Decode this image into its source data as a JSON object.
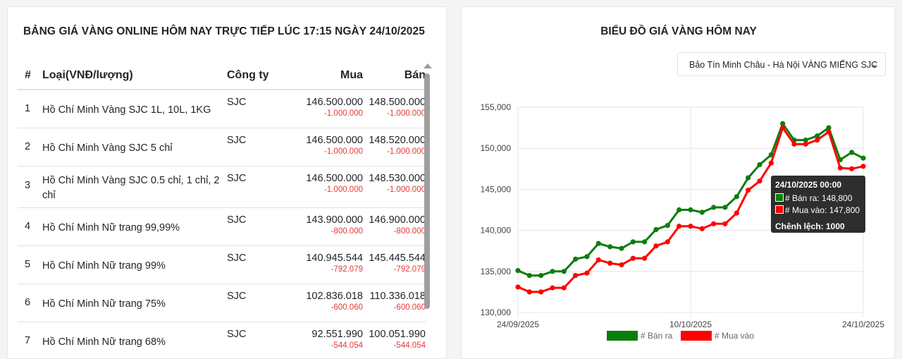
{
  "left": {
    "title": "BẢNG GIÁ VÀNG ONLINE HÔM NAY TRỰC TIẾP LÚC 17:15 NGÀY 24/10/2025",
    "columns": [
      "#",
      "Loại(VNĐ/lượng)",
      "Công ty",
      "Mua",
      "Bán"
    ],
    "rows": [
      {
        "idx": "1",
        "name": "Hồ Chí Minh Vàng SJC 1L, 10L, 1KG",
        "company": "SJC",
        "buy": "146.500.000",
        "buy_diff": "-1.000.000",
        "sell": "148.500.000",
        "sell_diff": "-1.000.000"
      },
      {
        "idx": "2",
        "name": "Hồ Chí Minh Vàng SJC 5 chỉ",
        "company": "SJC",
        "buy": "146.500.000",
        "buy_diff": "-1.000.000",
        "sell": "148.520.000",
        "sell_diff": "-1.000.000"
      },
      {
        "idx": "3",
        "name": "Hồ Chí Minh Vàng SJC 0.5 chỉ, 1 chỉ, 2 chỉ",
        "company": "SJC",
        "buy": "146.500.000",
        "buy_diff": "-1.000.000",
        "sell": "148.530.000",
        "sell_diff": "-1.000.000"
      },
      {
        "idx": "4",
        "name": "Hồ Chí Minh Nữ trang 99,99%",
        "company": "SJC",
        "buy": "143.900.000",
        "buy_diff": "-800.000",
        "sell": "146.900.000",
        "sell_diff": "-800.000"
      },
      {
        "idx": "5",
        "name": "Hồ Chí Minh Nữ trang 99%",
        "company": "SJC",
        "buy": "140.945.544",
        "buy_diff": "-792.079",
        "sell": "145.445.544",
        "sell_diff": "-792.079"
      },
      {
        "idx": "6",
        "name": "Hồ Chí Minh Nữ trang 75%",
        "company": "SJC",
        "buy": "102.836.018",
        "buy_diff": "-600.060",
        "sell": "110.336.018",
        "sell_diff": "-600.060"
      },
      {
        "idx": "7",
        "name": "Hồ Chí Minh Nữ trang 68%",
        "company": "SJC",
        "buy": "92.551.990",
        "buy_diff": "-544.054",
        "sell": "100.051.990",
        "sell_diff": "-544.054"
      }
    ]
  },
  "right": {
    "title": "BIỂU ĐỒ GIÁ VÀNG HÔM NAY",
    "select_value": "Bảo Tín Minh Châu - Hà Nội VÀNG MIẾNG SJC",
    "tooltip": {
      "title": "24/10/2025 00:00",
      "sell_line": "# Bán ra: 148,800",
      "buy_line": "# Mua vào: 147,800",
      "footer": "Chênh lệch: 1000"
    }
  },
  "chart_data": {
    "type": "line",
    "title": "BIỂU ĐỒ GIÁ VÀNG HÔM NAY",
    "x_tick_labels": [
      "24/09/2025",
      "10/10/2025",
      "24/10/2025"
    ],
    "y_ticks": [
      130000,
      135000,
      140000,
      145000,
      150000,
      155000
    ],
    "y_tick_labels": [
      "130,000",
      "135,000",
      "140,000",
      "145,000",
      "150,000",
      "155,000"
    ],
    "ylim": [
      130000,
      155000
    ],
    "grid": true,
    "legend_position": "bottom",
    "series": [
      {
        "name": "# Bán ra",
        "color": "#0b7d0b",
        "values": [
          135100,
          134500,
          134500,
          135000,
          135000,
          136500,
          136800,
          138400,
          138000,
          137800,
          138600,
          138600,
          140100,
          140600,
          142500,
          142500,
          142200,
          142800,
          142800,
          144100,
          146400,
          148000,
          149200,
          153000,
          151000,
          151000,
          151500,
          152500,
          148600,
          149500,
          148800
        ]
      },
      {
        "name": "# Mua vào",
        "color": "#ff0000",
        "values": [
          133100,
          132500,
          132500,
          133000,
          133000,
          134500,
          134800,
          136400,
          136000,
          135800,
          136600,
          136600,
          138100,
          138600,
          140500,
          140500,
          140200,
          140800,
          140800,
          142100,
          144900,
          146000,
          148200,
          152500,
          150500,
          150500,
          151000,
          152000,
          147600,
          147500,
          147800
        ]
      }
    ]
  }
}
